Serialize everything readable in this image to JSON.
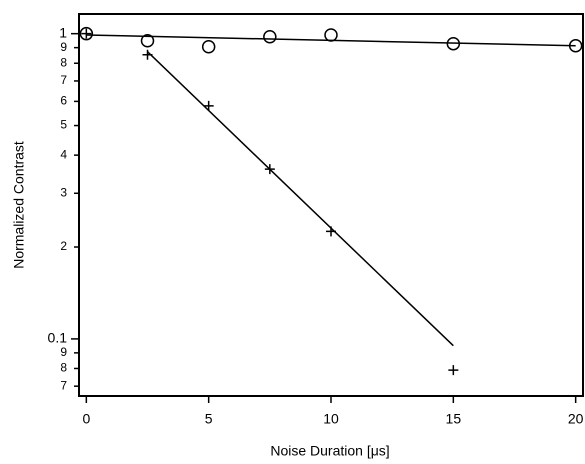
{
  "chart_data": {
    "type": "scatter",
    "xlabel": "Noise Duration  [μs]",
    "ylabel": "Normalized Contrast",
    "xlim": [
      -0.3,
      20.3
    ],
    "xticks": [
      0,
      5,
      10,
      15,
      20
    ],
    "ylim": [
      0.065,
      1.16
    ],
    "log_y": true,
    "yticks": [
      1,
      {
        "value": 0.9,
        "label": "9"
      },
      {
        "value": 0.8,
        "label": "8"
      },
      {
        "value": 0.7,
        "label": "7"
      },
      {
        "value": 0.6,
        "label": "6"
      },
      {
        "value": 0.5,
        "label": "5"
      },
      {
        "value": 0.4,
        "label": "4"
      },
      {
        "value": 0.3,
        "label": "3"
      },
      {
        "value": 0.2,
        "label": "2"
      },
      0.1,
      {
        "value": 0.09,
        "label": "9"
      },
      {
        "value": 0.08,
        "label": "8"
      },
      {
        "value": 0.07,
        "label": "7"
      }
    ],
    "series": [
      {
        "style": "marker",
        "marker": "circle",
        "color": "#000000",
        "x": [
          0,
          2.5,
          5,
          7.5,
          10,
          15,
          20
        ],
        "values": [
          1.0,
          0.948,
          0.906,
          0.977,
          0.99,
          0.927,
          0.913
        ]
      },
      {
        "style": "marker",
        "marker": "plus",
        "color": "#000000",
        "x": [
          0,
          2.5,
          5,
          7.5,
          10,
          15
        ],
        "values": [
          1.0,
          0.853,
          0.58,
          0.36,
          0.225,
          0.079
        ]
      },
      {
        "style": "line",
        "color": "#000000",
        "x": [
          0,
          20
        ],
        "values": [
          0.99,
          0.913
        ]
      },
      {
        "style": "line",
        "color": "#000000",
        "x": [
          2.5,
          15
        ],
        "values": [
          0.873,
          0.095
        ]
      }
    ]
  }
}
